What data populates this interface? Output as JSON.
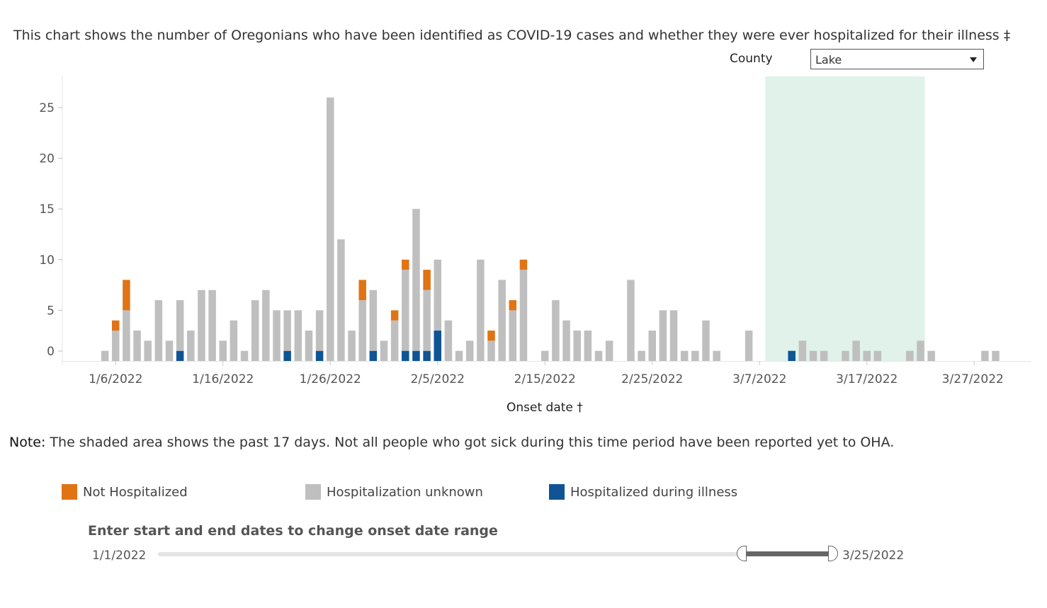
{
  "header": {
    "description": "This chart shows the number of Oregonians who have been identified as COVID-19 cases and whether they were ever hospitalized for their illness ‡"
  },
  "filter": {
    "county_label": "County",
    "county_value": "Lake"
  },
  "note": {
    "label": "Note:",
    "text": " The shaded area shows the past 17 days. Not all people who got sick during this time period have been reported yet to OHA."
  },
  "legend": {
    "not_hospitalized": "Not Hospitalized",
    "unknown": "Hospitalization unknown",
    "hospitalized": "Hospitalized during illness"
  },
  "range": {
    "title": "Enter start and end dates to change onset date range",
    "start": "1/1/2022",
    "end": "3/25/2022"
  },
  "colors": {
    "not_hospitalized": "#e07314",
    "unknown": "#bfbfbf",
    "hospitalized": "#0f5494",
    "shade": "#e0f2ea"
  },
  "chart_data": {
    "type": "bar",
    "stacked": true,
    "xlabel": "Onset date †",
    "ylabel": "",
    "ylim": [
      0,
      28
    ],
    "y_ticks": [
      0,
      5,
      10,
      15,
      20,
      25
    ],
    "x_tick_labels": [
      "1/6/2022",
      "1/16/2022",
      "1/26/2022",
      "2/5/2022",
      "2/15/2022",
      "2/25/2022",
      "3/7/2022",
      "3/17/2022",
      "3/27/2022"
    ],
    "x_tick_days": [
      5,
      15,
      25,
      35,
      45,
      55,
      65,
      75,
      85
    ],
    "shaded_range_days": [
      66,
      80
    ],
    "shaded_label": "past 17 days",
    "start_date": "1/1/2022",
    "series": [
      {
        "name": "Hospitalized during illness",
        "color_key": "hospitalized",
        "values": [
          0,
          0,
          0,
          0,
          0,
          0,
          0,
          1,
          0,
          0,
          0,
          0,
          0,
          0,
          0,
          0,
          0,
          1,
          0,
          0,
          1,
          0,
          0,
          0,
          0,
          1,
          0,
          0,
          1,
          1,
          1,
          3,
          0,
          0,
          0,
          0,
          0,
          0,
          0,
          0,
          0,
          0,
          0,
          0,
          0,
          0,
          0,
          0,
          0,
          0,
          0,
          0,
          0,
          0,
          0,
          0,
          0,
          0,
          0,
          0,
          0,
          0,
          0,
          0,
          1,
          0,
          0,
          0,
          0,
          0,
          0,
          0,
          0,
          0,
          0,
          0,
          0,
          0,
          0,
          0,
          0,
          0,
          0,
          0
        ]
      },
      {
        "name": "Hospitalization unknown",
        "color_key": "unknown",
        "values": [
          1,
          3,
          5,
          3,
          2,
          6,
          2,
          5,
          3,
          7,
          7,
          2,
          4,
          1,
          6,
          7,
          5,
          4,
          5,
          3,
          4,
          26,
          12,
          3,
          6,
          6,
          2,
          4,
          8,
          14,
          6,
          7,
          4,
          1,
          2,
          10,
          2,
          8,
          5,
          9,
          0,
          1,
          6,
          4,
          3,
          3,
          1,
          2,
          0,
          8,
          1,
          3,
          5,
          5,
          1,
          1,
          4,
          1,
          0,
          0,
          3,
          0,
          0,
          0,
          0,
          2,
          1,
          1,
          0,
          1,
          2,
          1,
          1,
          0,
          0,
          1,
          2,
          1,
          0,
          0,
          0,
          0,
          1,
          1
        ]
      },
      {
        "name": "Not Hospitalized",
        "color_key": "not_hospitalized",
        "values": [
          0,
          1,
          3,
          0,
          0,
          0,
          0,
          0,
          0,
          0,
          0,
          0,
          0,
          0,
          0,
          0,
          0,
          0,
          0,
          0,
          0,
          0,
          0,
          0,
          2,
          0,
          0,
          1,
          1,
          0,
          2,
          0,
          0,
          0,
          0,
          0,
          1,
          0,
          1,
          1,
          0,
          0,
          0,
          0,
          0,
          0,
          0,
          0,
          0,
          0,
          0,
          0,
          0,
          0,
          0,
          0,
          0,
          0,
          0,
          0,
          0,
          0,
          0,
          0,
          0,
          0,
          0,
          0,
          0,
          0,
          0,
          0,
          0,
          0,
          0,
          0,
          0,
          0,
          0,
          0,
          0,
          0,
          0,
          0
        ]
      }
    ],
    "first_bar_day": 4
  }
}
